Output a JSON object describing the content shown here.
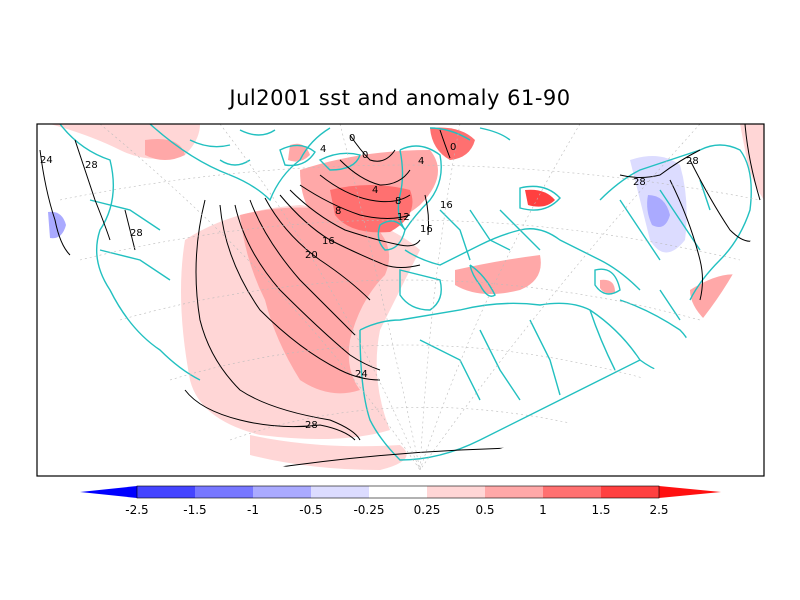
{
  "title": "Jul2001 sst and anomaly 61-90",
  "colors": {
    "coast": "#22c0c0",
    "contour": "#000000",
    "pos1": "#ffd6d6",
    "pos2": "#ffa8a8",
    "pos3": "#ff7070",
    "pos4": "#ff4040",
    "pos5": "#ff1010",
    "neg1": "#dcdcff",
    "neg2": "#aaaaff",
    "neg3": "#7777ff",
    "neg4": "#4444ff",
    "neg5": "#0000ff"
  },
  "colorbar": {
    "ticks": [
      "-2.5",
      "-1.5",
      "-1",
      "-0.5",
      "-0.25",
      "0.25",
      "0.5",
      "1",
      "1.5",
      "2.5"
    ]
  },
  "contour_labels": [
    "24",
    "28",
    "28",
    "24",
    "20",
    "16",
    "12",
    "8",
    "4",
    "0",
    "0",
    "4",
    "8",
    "16",
    "16",
    "28",
    "28",
    "28",
    "4",
    "0"
  ]
}
